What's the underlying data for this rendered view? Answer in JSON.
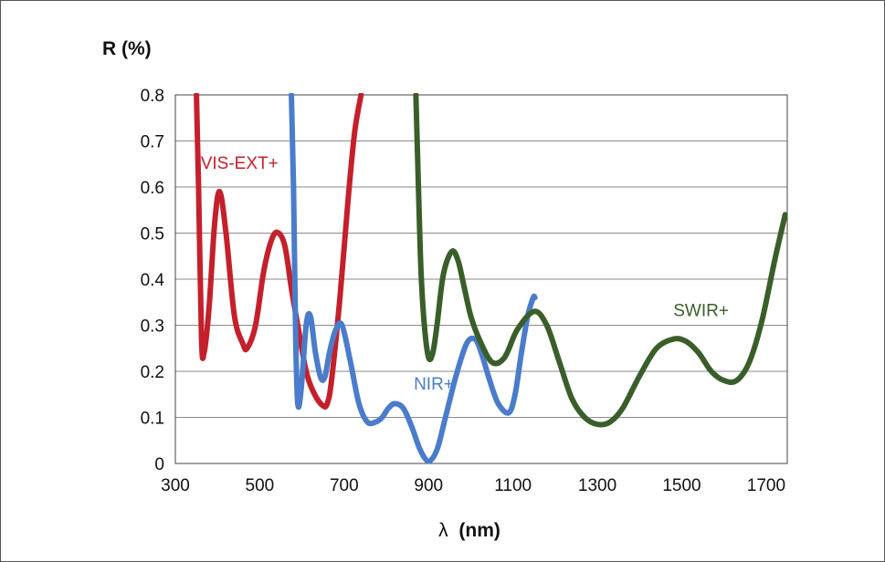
{
  "chart_data": {
    "type": "line",
    "title": "",
    "ylabel": "R (%)",
    "xlabel_symbol": "λ",
    "xlabel_unit": "(nm)",
    "xlim": [
      300,
      1750
    ],
    "ylim": [
      0,
      0.8
    ],
    "xticks": [
      300,
      500,
      700,
      900,
      1100,
      1300,
      1500,
      1700
    ],
    "yticks": [
      0,
      0.1,
      0.2,
      0.3,
      0.4,
      0.5,
      0.6,
      0.7,
      0.8
    ],
    "grid": "horizontal",
    "series": [
      {
        "name": "VIS-EXT+",
        "color": "#c4202b",
        "label_position": [
          360,
          0.64
        ],
        "x": [
          350,
          355,
          362,
          368,
          380,
          393,
          405,
          420,
          440,
          460,
          470,
          490,
          510,
          530,
          545,
          560,
          575,
          590,
          610,
          630,
          650,
          660,
          670,
          690,
          710,
          725,
          740
        ],
        "y": [
          0.8,
          0.6,
          0.27,
          0.24,
          0.34,
          0.52,
          0.59,
          0.5,
          0.32,
          0.26,
          0.25,
          0.3,
          0.42,
          0.49,
          0.5,
          0.47,
          0.38,
          0.3,
          0.2,
          0.15,
          0.125,
          0.13,
          0.18,
          0.36,
          0.58,
          0.72,
          0.8
        ]
      },
      {
        "name": "NIR+",
        "color": "#4a7ccb",
        "label_position": [
          865,
          0.16
        ],
        "x": [
          575,
          580,
          585,
          590,
          598,
          610,
          620,
          632,
          645,
          655,
          665,
          680,
          695,
          715,
          735,
          755,
          775,
          790,
          805,
          820,
          840,
          860,
          880,
          900,
          920,
          940,
          965,
          990,
          1010,
          1025,
          1045,
          1065,
          1090,
          1105,
          1120,
          1135,
          1148,
          1152
        ],
        "y": [
          0.8,
          0.6,
          0.28,
          0.13,
          0.16,
          0.3,
          0.32,
          0.24,
          0.185,
          0.19,
          0.24,
          0.29,
          0.3,
          0.22,
          0.13,
          0.09,
          0.09,
          0.1,
          0.12,
          0.13,
          0.12,
          0.08,
          0.03,
          0.005,
          0.03,
          0.1,
          0.19,
          0.26,
          0.27,
          0.24,
          0.18,
          0.13,
          0.11,
          0.15,
          0.24,
          0.32,
          0.36,
          0.36
        ]
      },
      {
        "name": "SWIR+",
        "color": "#3a5e2a",
        "label_position": [
          1480,
          0.32
        ],
        "x": [
          870,
          876,
          882,
          890,
          900,
          910,
          920,
          935,
          955,
          970,
          985,
          1000,
          1020,
          1050,
          1080,
          1110,
          1150,
          1180,
          1210,
          1240,
          1270,
          1300,
          1330,
          1360,
          1400,
          1440,
          1480,
          1510,
          1540,
          1570,
          1600,
          1630,
          1660,
          1690,
          1720,
          1745
        ],
        "y": [
          0.8,
          0.6,
          0.42,
          0.3,
          0.23,
          0.24,
          0.3,
          0.41,
          0.46,
          0.44,
          0.38,
          0.32,
          0.27,
          0.22,
          0.23,
          0.29,
          0.33,
          0.3,
          0.22,
          0.14,
          0.1,
          0.085,
          0.09,
          0.12,
          0.19,
          0.25,
          0.27,
          0.265,
          0.24,
          0.2,
          0.18,
          0.18,
          0.22,
          0.31,
          0.44,
          0.54
        ]
      }
    ]
  }
}
